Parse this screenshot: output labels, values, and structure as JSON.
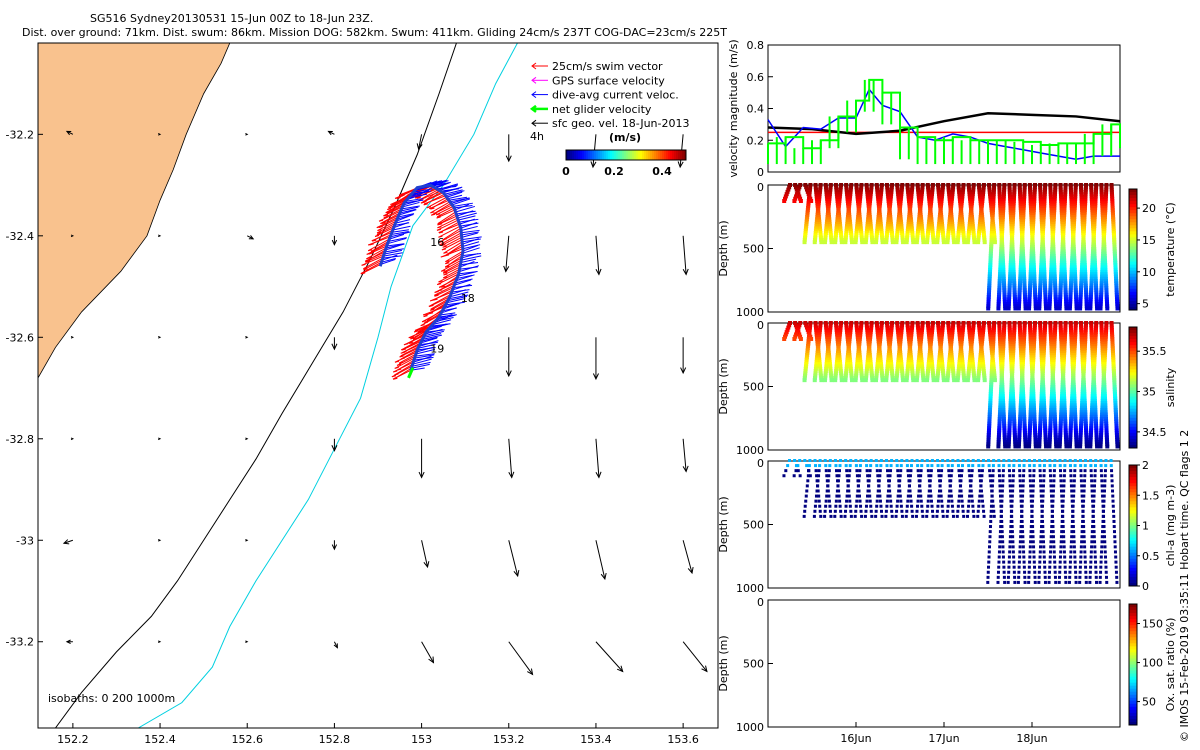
{
  "title": {
    "line1": "SG516 Sydney20130531 15-Jun 00Z to 18-Jun 23Z.",
    "line2": "Dist. over ground: 71km. Dist. swum: 86km. Mission DOG: 582km. Swum: 411km. Gliding 24cm/s 237T COG-DAC=23cm/s 225T"
  },
  "credit": "© IMOS 15-Feb-2019 03:35:11 Hobart time. QC flags 1  2",
  "colors": {
    "land": "#f9c28e",
    "swim": "#ff0000",
    "gps": "#ff00ff",
    "dac": "#0000ff",
    "net": "#00ff00",
    "geo": "#000000",
    "iso200": "#00d0e0",
    "iso1000": "#000000"
  },
  "chart_data": [
    {
      "type": "scatter",
      "name": "map",
      "xlim": [
        152.12,
        153.68
      ],
      "ylim": [
        -33.37,
        -32.02
      ],
      "xticks": [
        152.2,
        152.4,
        152.6,
        152.8,
        153,
        153.2,
        153.4,
        153.6
      ],
      "yticks": [
        -32.2,
        -32.4,
        -32.6,
        -32.8,
        -33,
        -33.2
      ],
      "xtick_labels": [
        "152.2",
        "152.4",
        "152.6",
        "152.8",
        "153",
        "153.2",
        "153.4",
        "153.6"
      ],
      "ytick_labels": [
        "-32.2",
        "-32.4",
        "-32.6",
        "-32.8",
        "-33",
        "-33.2"
      ],
      "legend": [
        {
          "label": "25cm/s swim vector",
          "color": "#ff0000"
        },
        {
          "label": "GPS surface velocity",
          "color": "#ff00ff"
        },
        {
          "label": "dive-avg current veloc.",
          "color": "#0000ff"
        },
        {
          "label": "net glider velocity",
          "color": "#00ff00"
        },
        {
          "label": "sfc geo. vel. 18-Jun-2013",
          "color": "#000000"
        }
      ],
      "legend_note": "4h",
      "colorbar": {
        "label": "(m/s)",
        "ticks": [
          "0",
          "0.2",
          "0.4"
        ],
        "range": [
          0,
          0.5
        ]
      },
      "isobath_label": "isobaths: 0   200  1000m",
      "day_labels": [
        {
          "text": "16",
          "lon": 153.02,
          "lat": -32.42
        },
        {
          "text": "18",
          "lon": 153.09,
          "lat -32.53": 0,
          "lat": -32.53
        },
        {
          "text": "19",
          "lon": 153.02,
          "lat": -32.63
        }
      ],
      "track": [
        [
          152.975,
          -32.665
        ],
        [
          152.99,
          -32.625
        ],
        [
          153.01,
          -32.59
        ],
        [
          153.04,
          -32.56
        ],
        [
          153.065,
          -32.52
        ],
        [
          153.085,
          -32.475
        ],
        [
          153.095,
          -32.43
        ],
        [
          153.09,
          -32.385
        ],
        [
          153.075,
          -32.345
        ],
        [
          153.05,
          -32.315
        ],
        [
          153.02,
          -32.3
        ],
        [
          152.99,
          -32.305
        ],
        [
          152.96,
          -32.335
        ],
        [
          152.94,
          -32.375
        ],
        [
          152.92,
          -32.42
        ],
        [
          152.905,
          -32.46
        ]
      ],
      "coast": [
        [
          152.12,
          -32.68
        ],
        [
          152.16,
          -32.62
        ],
        [
          152.22,
          -32.55
        ],
        [
          152.31,
          -32.47
        ],
        [
          152.37,
          -32.4
        ],
        [
          152.4,
          -32.33
        ],
        [
          152.43,
          -32.27
        ],
        [
          152.46,
          -32.2
        ],
        [
          152.5,
          -32.12
        ],
        [
          152.54,
          -32.06
        ],
        [
          152.56,
          -32.02
        ]
      ],
      "iso200": [
        [
          152.35,
          -33.37
        ],
        [
          152.45,
          -33.32
        ],
        [
          152.52,
          -33.25
        ],
        [
          152.56,
          -33.17
        ],
        [
          152.62,
          -33.08
        ],
        [
          152.68,
          -33.0
        ],
        [
          152.74,
          -32.92
        ],
        [
          152.8,
          -32.82
        ],
        [
          152.86,
          -32.72
        ],
        [
          152.9,
          -32.6
        ],
        [
          152.93,
          -32.5
        ],
        [
          152.98,
          -32.38
        ],
        [
          153.05,
          -32.3
        ],
        [
          153.12,
          -32.2
        ],
        [
          153.17,
          -32.1
        ],
        [
          153.22,
          -32.02
        ]
      ],
      "iso1000": [
        [
          152.16,
          -33.37
        ],
        [
          152.22,
          -33.3
        ],
        [
          152.3,
          -33.22
        ],
        [
          152.38,
          -33.15
        ],
        [
          152.44,
          -33.08
        ],
        [
          152.5,
          -33.0
        ],
        [
          152.56,
          -32.92
        ],
        [
          152.62,
          -32.84
        ],
        [
          152.68,
          -32.75
        ],
        [
          152.75,
          -32.65
        ],
        [
          152.82,
          -32.55
        ],
        [
          152.88,
          -32.45
        ],
        [
          152.94,
          -32.34
        ],
        [
          152.99,
          -32.24
        ],
        [
          153.04,
          -32.12
        ],
        [
          153.08,
          -32.02
        ]
      ],
      "geo_vectors": [
        [
          152.2,
          -32.2,
          -0.02,
          0.01
        ],
        [
          152.4,
          -32.2,
          0.0,
          0.0
        ],
        [
          152.6,
          -32.2,
          0.0,
          0.0
        ],
        [
          152.8,
          -32.2,
          -0.02,
          0.01
        ],
        [
          153.0,
          -32.2,
          -0.01,
          -0.05
        ],
        [
          153.2,
          -32.2,
          0.0,
          -0.09
        ],
        [
          153.4,
          -32.2,
          -0.01,
          -0.11
        ],
        [
          153.6,
          -32.2,
          -0.01,
          -0.11
        ],
        [
          152.2,
          -32.4,
          0.0,
          0.0
        ],
        [
          152.4,
          -32.4,
          0.0,
          0.0
        ],
        [
          152.6,
          -32.4,
          0.02,
          -0.01
        ],
        [
          152.8,
          -32.4,
          0.0,
          -0.03
        ],
        [
          153.2,
          -32.4,
          -0.01,
          -0.12
        ],
        [
          153.4,
          -32.4,
          0.01,
          -0.13
        ],
        [
          153.6,
          -32.4,
          0.01,
          -0.13
        ],
        [
          152.2,
          -32.6,
          0.0,
          0.0
        ],
        [
          152.4,
          -32.6,
          0.0,
          0.0
        ],
        [
          152.6,
          -32.6,
          0.0,
          0.0
        ],
        [
          152.8,
          -32.6,
          0.0,
          -0.04
        ],
        [
          153.2,
          -32.6,
          0.0,
          -0.13
        ],
        [
          153.4,
          -32.6,
          0.0,
          -0.14
        ],
        [
          153.6,
          -32.6,
          0.0,
          -0.12
        ],
        [
          152.2,
          -32.8,
          0.0,
          0.0
        ],
        [
          152.4,
          -32.8,
          0.0,
          0.0
        ],
        [
          152.6,
          -32.8,
          0.0,
          0.0
        ],
        [
          152.8,
          -32.8,
          0.0,
          -0.04
        ],
        [
          153.0,
          -32.8,
          0.0,
          -0.13
        ],
        [
          153.2,
          -32.8,
          0.01,
          -0.13
        ],
        [
          153.4,
          -32.8,
          0.01,
          -0.13
        ],
        [
          153.6,
          -32.8,
          0.01,
          -0.11
        ],
        [
          152.2,
          -33.0,
          -0.03,
          -0.01
        ],
        [
          152.4,
          -33.0,
          0.0,
          0.0
        ],
        [
          152.6,
          -33.0,
          0.0,
          0.0
        ],
        [
          152.8,
          -33.0,
          0.0,
          -0.03
        ],
        [
          153.0,
          -33.0,
          0.02,
          -0.09
        ],
        [
          153.2,
          -33.0,
          0.03,
          -0.12
        ],
        [
          153.4,
          -33.0,
          0.03,
          -0.13
        ],
        [
          153.6,
          -33.0,
          0.03,
          -0.11
        ],
        [
          152.2,
          -33.2,
          -0.02,
          0.0
        ],
        [
          152.4,
          -33.2,
          0.0,
          0.0
        ],
        [
          152.6,
          -33.2,
          0.0,
          0.0
        ],
        [
          152.8,
          -33.2,
          0.01,
          -0.02
        ],
        [
          153.0,
          -33.2,
          0.04,
          -0.07
        ],
        [
          153.2,
          -33.2,
          0.08,
          -0.11
        ],
        [
          153.4,
          -33.2,
          0.09,
          -0.1
        ],
        [
          153.6,
          -33.2,
          0.08,
          -0.1
        ]
      ]
    },
    {
      "type": "line",
      "name": "velocity",
      "ylabel": "velocity magnitude (m/s)",
      "ylim": [
        0,
        0.8
      ],
      "yticks": [
        0,
        0.2,
        0.4,
        0.6,
        0.8
      ],
      "xlim": [
        15.0,
        19.0
      ],
      "series": [
        {
          "name": "swim",
          "color": "#ff0000",
          "x": [
            15.0,
            19.0
          ],
          "values": [
            0.25,
            0.25
          ]
        },
        {
          "name": "geo",
          "color": "#000000",
          "x": [
            15.0,
            15.5,
            16.0,
            16.5,
            17.0,
            17.5,
            18.0,
            18.5,
            19.0
          ],
          "values": [
            0.28,
            0.27,
            0.24,
            0.26,
            0.32,
            0.37,
            0.36,
            0.35,
            0.32
          ]
        },
        {
          "name": "dac",
          "color": "#0000ff",
          "x": [
            15.0,
            15.2,
            15.4,
            15.6,
            15.8,
            16.0,
            16.15,
            16.3,
            16.5,
            16.7,
            16.9,
            17.1,
            17.3,
            17.5,
            17.7,
            17.9,
            18.1,
            18.3,
            18.5,
            18.7,
            18.9,
            19.0
          ],
          "values": [
            0.33,
            0.16,
            0.28,
            0.27,
            0.34,
            0.34,
            0.52,
            0.42,
            0.38,
            0.22,
            0.2,
            0.24,
            0.22,
            0.18,
            0.16,
            0.14,
            0.12,
            0.1,
            0.08,
            0.1,
            0.1,
            0.1
          ]
        },
        {
          "name": "net",
          "color": "#00ff00",
          "x": [
            15.0,
            15.2,
            15.4,
            15.6,
            15.8,
            16.0,
            16.15,
            16.3,
            16.5,
            16.7,
            16.9,
            17.1,
            17.3,
            17.5,
            17.7,
            17.9,
            18.1,
            18.3,
            18.5,
            18.7,
            18.9,
            19.0
          ],
          "values": [
            0.18,
            0.22,
            0.15,
            0.2,
            0.35,
            0.45,
            0.58,
            0.5,
            0.28,
            0.22,
            0.2,
            0.22,
            0.2,
            0.2,
            0.2,
            0.19,
            0.17,
            0.18,
            0.18,
            0.24,
            0.3,
            0.15
          ]
        }
      ]
    },
    {
      "type": "scatter",
      "name": "temperature",
      "ylabel": "Depth (m)",
      "ylim": [
        1000,
        0
      ],
      "yticks": [
        0,
        500,
        1000
      ],
      "colorbar_label": "temperature (°C)",
      "colorbar_ticks": [
        5,
        10,
        15,
        20
      ],
      "crange": [
        4,
        23
      ]
    },
    {
      "type": "scatter",
      "name": "salinity",
      "ylabel": "Depth (m)",
      "ylim": [
        1000,
        0
      ],
      "yticks": [
        0,
        500,
        1000
      ],
      "colorbar_label": "salinity",
      "colorbar_ticks": [
        34.5,
        35,
        35.5
      ],
      "crange": [
        34.3,
        35.8
      ]
    },
    {
      "type": "scatter",
      "name": "chla",
      "ylabel": "Depth (m)",
      "ylim": [
        1000,
        0
      ],
      "yticks": [
        0,
        500,
        1000
      ],
      "colorbar_label": "chl-a (mg m-3)",
      "colorbar_ticks": [
        0,
        0.5,
        1,
        1.5,
        2
      ],
      "crange": [
        0,
        2
      ]
    },
    {
      "type": "scatter",
      "name": "oxygen",
      "ylabel": "Depth (m)",
      "ylim": [
        1000,
        0
      ],
      "yticks": [
        0,
        500,
        1000
      ],
      "colorbar_label": "Ox. sat. ratio (%)",
      "colorbar_ticks": [
        50,
        100,
        150
      ],
      "crange": [
        20,
        175
      ],
      "xticks": [
        16,
        17,
        18
      ],
      "xtick_labels": [
        "16Jun",
        "17Jun",
        "18Jun"
      ]
    }
  ]
}
